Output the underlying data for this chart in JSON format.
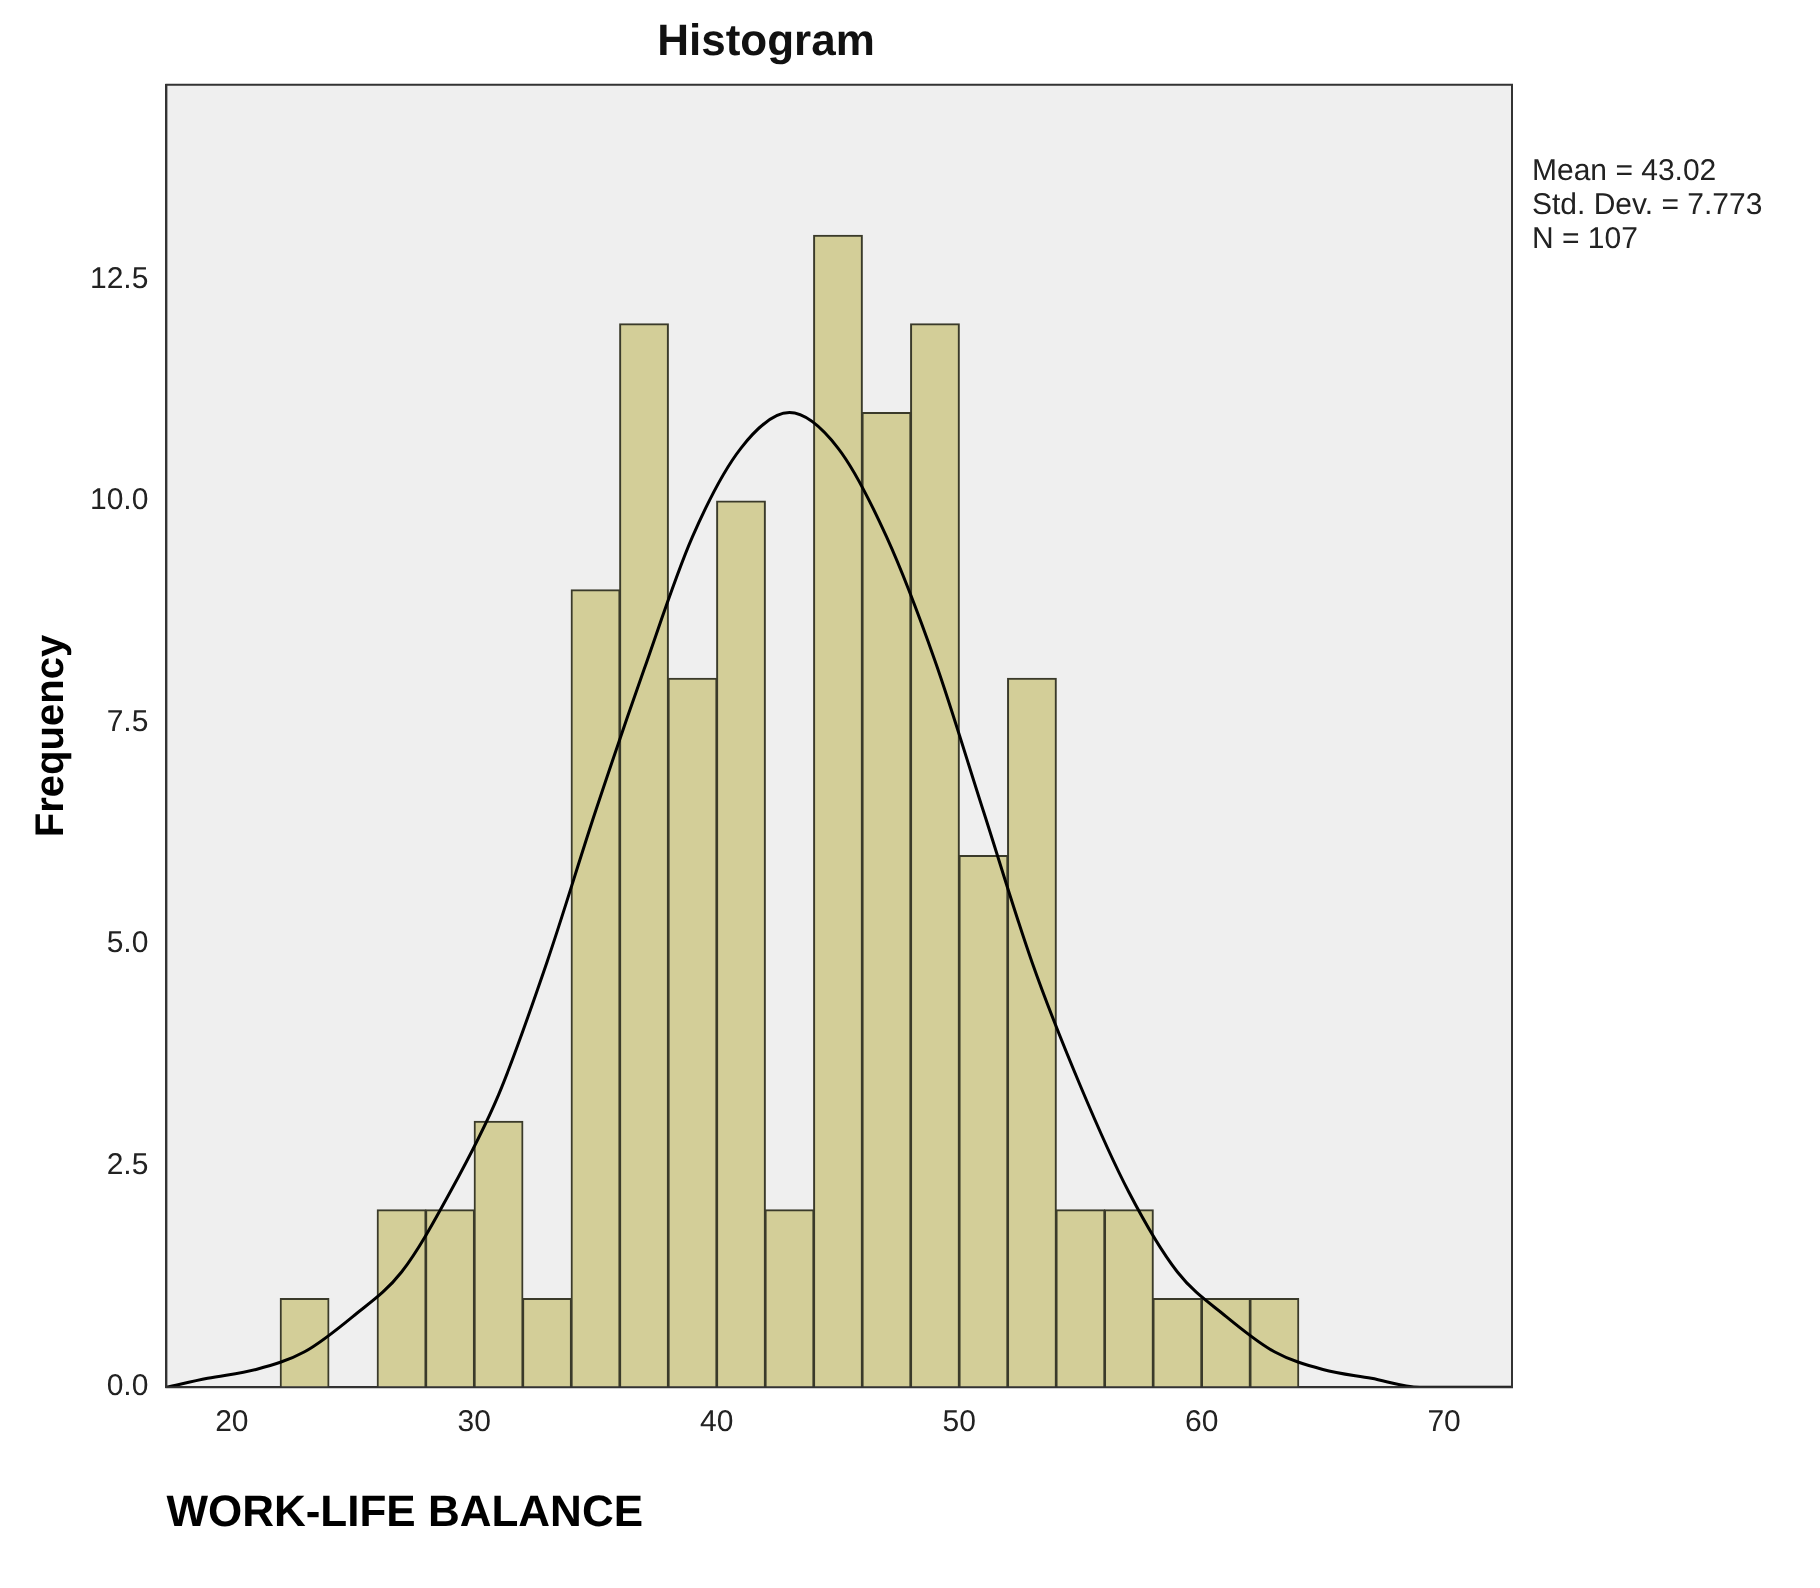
{
  "chart_data": {
    "type": "histogram",
    "title": "Histogram",
    "xlabel": "WORK-LIFE BALANCE",
    "ylabel": "Frequency",
    "annotations": [
      "Mean = 43.02",
      "Std. Dev. = 7.773",
      "N = 107"
    ],
    "bins": [
      22,
      24,
      26,
      28,
      30,
      32,
      34,
      36,
      38,
      40,
      42,
      44,
      46,
      48,
      50,
      52,
      54,
      56,
      58,
      60,
      62,
      64
    ],
    "values": [
      1,
      0,
      2,
      2,
      3,
      1,
      9,
      12,
      8,
      10,
      2,
      13,
      11,
      12,
      6,
      8,
      2,
      2,
      1,
      1,
      1
    ],
    "color": "#d3ce98",
    "series": [
      {
        "type": "line",
        "color": "#000000",
        "x": [
          17.3,
          19,
          21,
          23,
          25,
          27,
          29,
          31,
          33,
          35,
          37,
          39,
          41,
          43,
          45,
          47,
          49,
          51,
          53,
          55,
          57,
          59,
          61,
          63,
          65,
          67,
          69,
          71,
          72.8
        ],
        "values": [
          0.0,
          0.1,
          0.2,
          0.4,
          0.8,
          1.3,
          2.2,
          3.3,
          4.8,
          6.5,
          8.1,
          9.6,
          10.6,
          11.0,
          10.6,
          9.6,
          8.2,
          6.5,
          4.8,
          3.4,
          2.2,
          1.3,
          0.8,
          0.4,
          0.2,
          0.1,
          0.0,
          0.0,
          0.0
        ]
      }
    ],
    "xlim": [
      17.3,
      72.8
    ],
    "xticks": [
      20,
      30,
      40,
      50,
      60,
      70
    ],
    "ylim": [
      0,
      14.7
    ],
    "yticks": [
      {
        "value": 0,
        "label": "0.0"
      },
      {
        "value": 2.5,
        "label": "2.5"
      },
      {
        "value": 5,
        "label": "5.0"
      },
      {
        "value": 7.5,
        "label": "7.5"
      },
      {
        "value": 10,
        "label": "10.0"
      },
      {
        "value": 12.5,
        "label": "12.5"
      }
    ],
    "grid": false,
    "legend": false,
    "marker": "none",
    "line_style": "solid"
  }
}
